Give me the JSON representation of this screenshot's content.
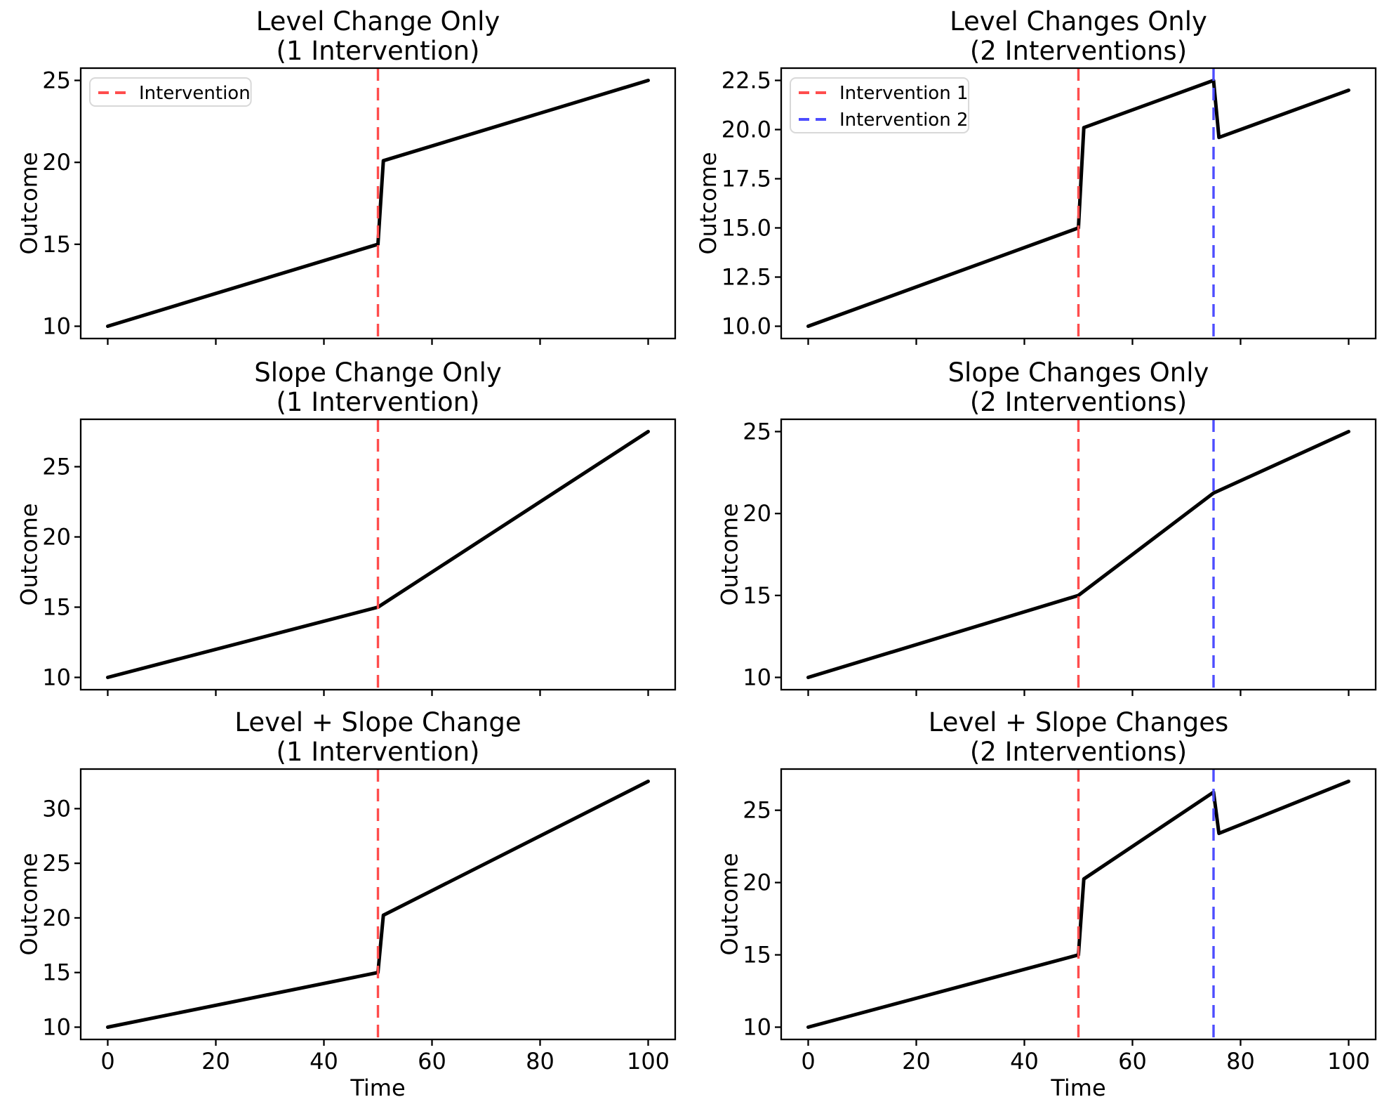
{
  "figure": {
    "background": "#ffffff",
    "rows": 3,
    "columns": 2
  },
  "colors": {
    "series_line": "#000000",
    "intervention_red": "#ff4d4d",
    "intervention_blue": "#4d4dff",
    "spine": "#000000",
    "text": "#000000",
    "legend_border": "#d8d8d8",
    "legend_background": "#ffffff"
  },
  "chart_data": [
    {
      "type": "line",
      "title": [
        "Level Change Only",
        "(1 Intervention)"
      ],
      "xlabel": "",
      "ylabel": "Outcome",
      "xlim": [
        -5,
        105
      ],
      "ylim": [
        9.25,
        25.75
      ],
      "xticks": [
        0,
        20,
        40,
        60,
        80,
        100
      ],
      "x_tick_labels": null,
      "yticks": [
        10,
        15,
        20,
        25
      ],
      "ytick_labels": [
        "10",
        "15",
        "20",
        "25"
      ],
      "grid": false,
      "series": [
        {
          "name": "Outcome",
          "color": "#000000",
          "points": [
            [
              0,
              10
            ],
            [
              50,
              15
            ],
            [
              51,
              20.1
            ],
            [
              100,
              25
            ]
          ]
        }
      ],
      "vlines": [
        {
          "x": 50,
          "color": "#ff4d4d",
          "label": "Intervention"
        }
      ],
      "legend": {
        "visible": true,
        "position": "upper-left",
        "entries": [
          {
            "label": "Intervention",
            "color": "#ff4d4d"
          }
        ]
      }
    },
    {
      "type": "line",
      "title": [
        "Level Changes Only",
        "(2 Interventions)"
      ],
      "xlabel": "",
      "ylabel": "Outcome",
      "xlim": [
        -5,
        105
      ],
      "ylim": [
        9.375,
        23.125
      ],
      "xticks": [
        0,
        20,
        40,
        60,
        80,
        100
      ],
      "x_tick_labels": null,
      "yticks": [
        10,
        12.5,
        15,
        17.5,
        20,
        22.5
      ],
      "ytick_labels": [
        "10.0",
        "12.5",
        "15.0",
        "17.5",
        "20.0",
        "22.5"
      ],
      "grid": false,
      "series": [
        {
          "name": "Outcome",
          "color": "#000000",
          "points": [
            [
              0,
              10
            ],
            [
              50,
              15
            ],
            [
              51,
              20.1
            ],
            [
              75,
              22.5
            ],
            [
              76,
              19.6
            ],
            [
              100,
              22
            ]
          ]
        }
      ],
      "vlines": [
        {
          "x": 50,
          "color": "#ff4d4d",
          "label": "Intervention 1"
        },
        {
          "x": 75,
          "color": "#4d4dff",
          "label": "Intervention 2"
        }
      ],
      "legend": {
        "visible": true,
        "position": "upper-left",
        "entries": [
          {
            "label": "Intervention 1",
            "color": "#ff4d4d"
          },
          {
            "label": "Intervention 2",
            "color": "#4d4dff"
          }
        ]
      }
    },
    {
      "type": "line",
      "title": [
        "Slope Change Only",
        "(1 Intervention)"
      ],
      "xlabel": "",
      "ylabel": "Outcome",
      "xlim": [
        -5,
        105
      ],
      "ylim": [
        9.125,
        28.375
      ],
      "xticks": [
        0,
        20,
        40,
        60,
        80,
        100
      ],
      "x_tick_labels": null,
      "yticks": [
        10,
        15,
        20,
        25
      ],
      "ytick_labels": [
        "10",
        "15",
        "20",
        "25"
      ],
      "grid": false,
      "series": [
        {
          "name": "Outcome",
          "color": "#000000",
          "points": [
            [
              0,
              10
            ],
            [
              50,
              15
            ],
            [
              100,
              27.5
            ]
          ]
        }
      ],
      "vlines": [
        {
          "x": 50,
          "color": "#ff4d4d",
          "label": "Intervention"
        }
      ],
      "legend": {
        "visible": false,
        "position": null,
        "entries": []
      }
    },
    {
      "type": "line",
      "title": [
        "Slope Changes Only",
        "(2 Interventions)"
      ],
      "xlabel": "",
      "ylabel": "Outcome",
      "xlim": [
        -5,
        105
      ],
      "ylim": [
        9.25,
        25.75
      ],
      "xticks": [
        0,
        20,
        40,
        60,
        80,
        100
      ],
      "x_tick_labels": null,
      "yticks": [
        10,
        15,
        20,
        25
      ],
      "ytick_labels": [
        "10",
        "15",
        "20",
        "25"
      ],
      "grid": false,
      "series": [
        {
          "name": "Outcome",
          "color": "#000000",
          "points": [
            [
              0,
              10
            ],
            [
              50,
              15
            ],
            [
              75,
              21.25
            ],
            [
              100,
              25
            ]
          ]
        }
      ],
      "vlines": [
        {
          "x": 50,
          "color": "#ff4d4d",
          "label": "Intervention 1"
        },
        {
          "x": 75,
          "color": "#4d4dff",
          "label": "Intervention 2"
        }
      ],
      "legend": {
        "visible": false,
        "position": null,
        "entries": []
      }
    },
    {
      "type": "line",
      "title": [
        "Level + Slope Change",
        "(1 Intervention)"
      ],
      "xlabel": "Time",
      "ylabel": "Outcome",
      "xlim": [
        -5,
        105
      ],
      "ylim": [
        8.875,
        33.625
      ],
      "xticks": [
        0,
        20,
        40,
        60,
        80,
        100
      ],
      "x_tick_labels": [
        "0",
        "20",
        "40",
        "60",
        "80",
        "100"
      ],
      "yticks": [
        10,
        15,
        20,
        25,
        30
      ],
      "ytick_labels": [
        "10",
        "15",
        "20",
        "25",
        "30"
      ],
      "grid": false,
      "series": [
        {
          "name": "Outcome",
          "color": "#000000",
          "points": [
            [
              0,
              10
            ],
            [
              50,
              15
            ],
            [
              51,
              20.25
            ],
            [
              100,
              32.5
            ]
          ]
        }
      ],
      "vlines": [
        {
          "x": 50,
          "color": "#ff4d4d",
          "label": "Intervention"
        }
      ],
      "legend": {
        "visible": false,
        "position": null,
        "entries": []
      }
    },
    {
      "type": "line",
      "title": [
        "Level + Slope Changes",
        "(2 Interventions)"
      ],
      "xlabel": "Time",
      "ylabel": "Outcome",
      "xlim": [
        -5,
        105
      ],
      "ylim": [
        9.15,
        27.85
      ],
      "xticks": [
        0,
        20,
        40,
        60,
        80,
        100
      ],
      "x_tick_labels": [
        "0",
        "20",
        "40",
        "60",
        "80",
        "100"
      ],
      "yticks": [
        10,
        15,
        20,
        25
      ],
      "ytick_labels": [
        "10",
        "15",
        "20",
        "25"
      ],
      "grid": false,
      "series": [
        {
          "name": "Outcome",
          "color": "#000000",
          "points": [
            [
              0,
              10
            ],
            [
              50,
              15
            ],
            [
              51,
              20.25
            ],
            [
              75,
              26.25
            ],
            [
              76,
              23.4
            ],
            [
              100,
              27
            ]
          ]
        }
      ],
      "vlines": [
        {
          "x": 50,
          "color": "#ff4d4d",
          "label": "Intervention 1"
        },
        {
          "x": 75,
          "color": "#4d4dff",
          "label": "Intervention 2"
        }
      ],
      "legend": {
        "visible": false,
        "position": null,
        "entries": []
      }
    }
  ]
}
